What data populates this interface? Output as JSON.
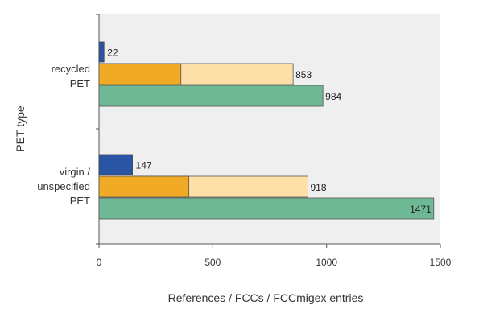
{
  "chart_data": {
    "type": "bar",
    "orientation": "horizontal",
    "ylabel": "PET type",
    "xlabel": "References / FCCs / FCCmigex entries",
    "xlim": [
      0,
      1500
    ],
    "xticks": [
      0,
      500,
      1000,
      1500
    ],
    "grid": false,
    "background": "#efefef",
    "categories": [
      {
        "lines": [
          "recycled",
          "PET"
        ]
      },
      {
        "lines": [
          "virgin /",
          "unspecified",
          "PET"
        ]
      }
    ],
    "series": [
      {
        "color": "#2a55a4",
        "values": [
          22,
          147
        ],
        "labels": [
          "22",
          "147"
        ]
      },
      {
        "color": "#f0aa26",
        "values": [
          360,
          395
        ],
        "labels": [
          "",
          ""
        ]
      },
      {
        "color": "#fce0a8",
        "values": [
          853,
          918
        ],
        "labels": [
          "853",
          "918"
        ],
        "stacked_behind_previous": true
      },
      {
        "color": "#6fb896",
        "values": [
          984,
          1471
        ],
        "labels": [
          "984",
          "1471"
        ]
      }
    ]
  }
}
